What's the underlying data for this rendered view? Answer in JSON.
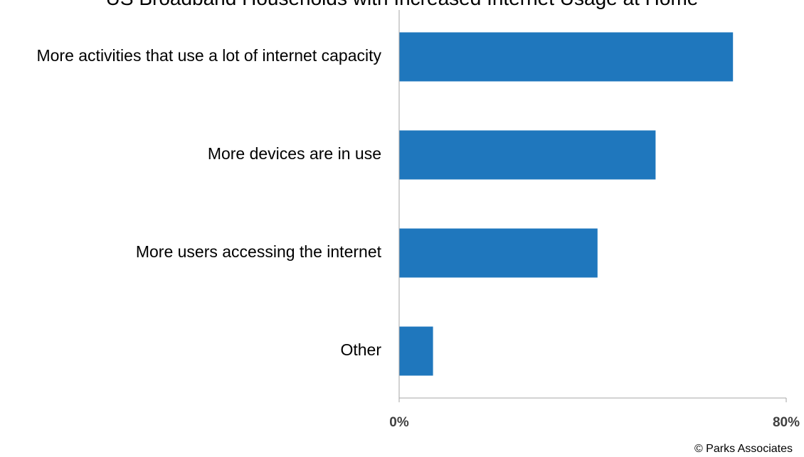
{
  "chart_data": {
    "type": "bar",
    "orientation": "horizontal",
    "title": "US Broadband Households with Increased Internet Usage at Home",
    "xlabel": "",
    "ylabel": "",
    "categories": [
      "More activities that use a lot of internet capacity",
      "More devices are in use",
      "More users accessing the internet",
      "Other"
    ],
    "values": [
      69,
      53,
      41,
      7
    ],
    "value_unit": "%",
    "xlim": [
      0,
      80
    ],
    "x_tick_labels": [
      "0%",
      "80%"
    ],
    "grid": false,
    "legend": "none",
    "bar_color": "#1f77bd"
  },
  "footer": {
    "copyright": "© Parks Associates"
  }
}
